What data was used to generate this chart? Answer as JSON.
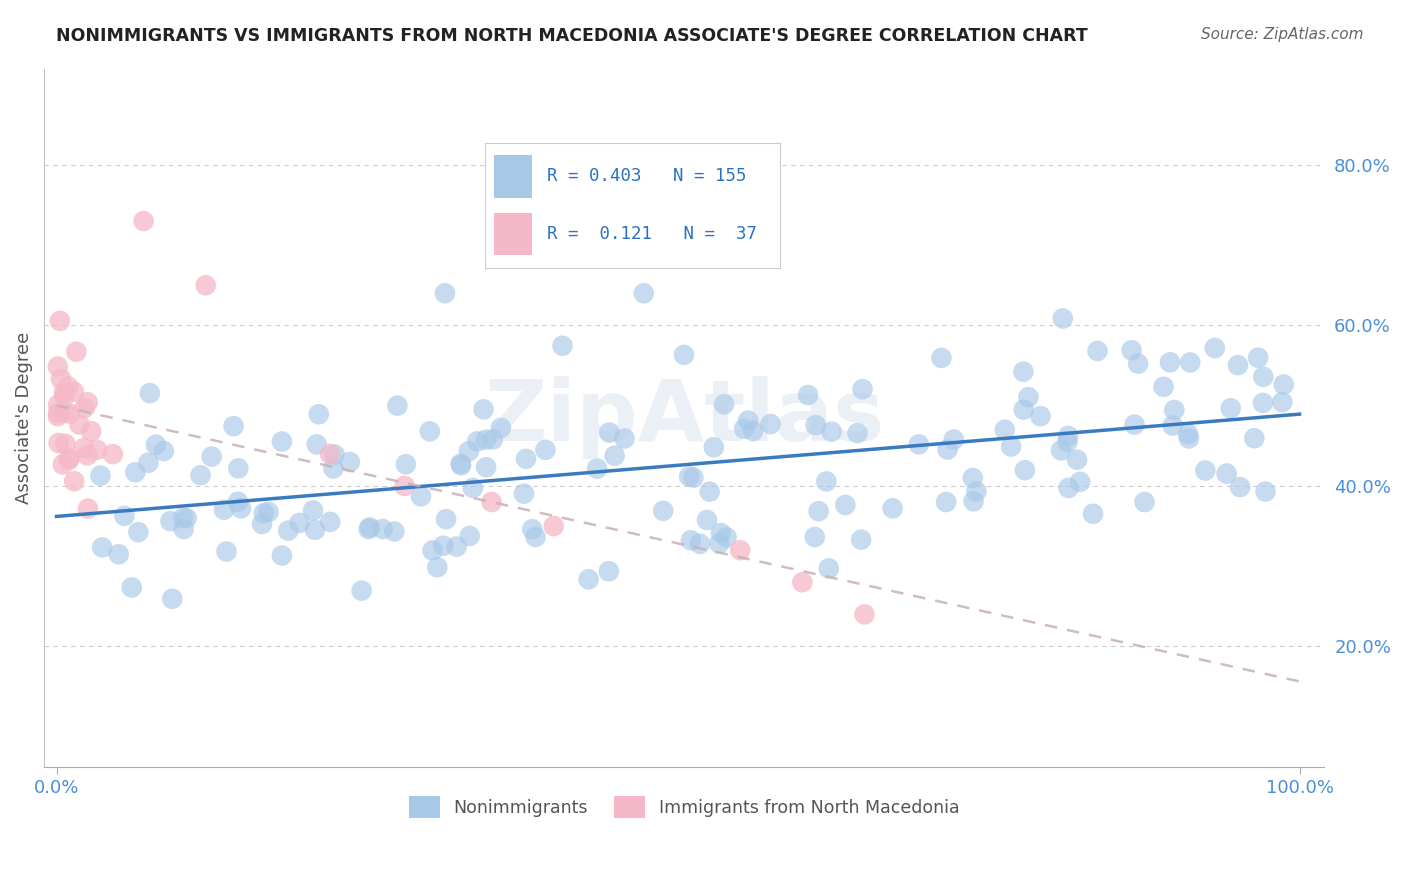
{
  "title": "NONIMMIGRANTS VS IMMIGRANTS FROM NORTH MACEDONIA ASSOCIATE'S DEGREE CORRELATION CHART",
  "source": "Source: ZipAtlas.com",
  "ylabel": "Associate's Degree",
  "r_blue": 0.403,
  "n_blue": 155,
  "r_pink": 0.121,
  "n_pink": 37,
  "xlim": [
    -0.01,
    1.02
  ],
  "ylim": [
    0.05,
    0.92
  ],
  "yticks": [
    0.2,
    0.4,
    0.6,
    0.8
  ],
  "ytick_labels": [
    "20.0%",
    "40.0%",
    "60.0%",
    "80.0%"
  ],
  "xticks": [
    0.0,
    1.0
  ],
  "xtick_labels": [
    "0.0%",
    "100.0%"
  ],
  "blue_color": "#a8c8e8",
  "blue_line_color": "#3a7abf",
  "pink_color": "#f5b8c8",
  "pink_line_color": "#c8b0b8",
  "watermark": "ZipAtlas",
  "grid_color": "#cccccc",
  "title_color": "#222222",
  "source_color": "#666666",
  "tick_color": "#4a90d9",
  "ylabel_color": "#555555"
}
